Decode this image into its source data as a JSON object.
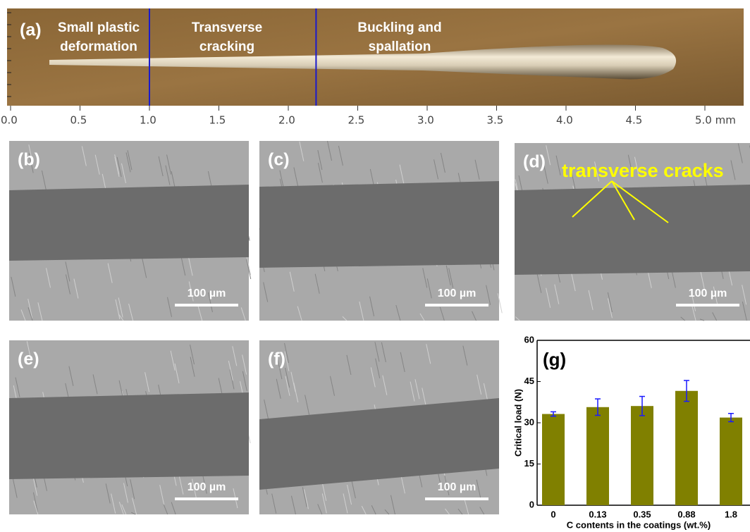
{
  "panel_a": {
    "label": "(a)",
    "zones": [
      [
        "Small plastic",
        "deformation"
      ],
      [
        "Transverse",
        "cracking"
      ],
      [
        "Buckling and",
        "spallation"
      ]
    ],
    "boundaries": [
      1.0,
      2.2
    ],
    "xlim": [
      0,
      5.3
    ],
    "xticks": [
      {
        "value": 0,
        "label": "0.0"
      },
      {
        "value": 0.5,
        "label": "0.5"
      },
      {
        "value": 1.0,
        "label": "1.0"
      },
      {
        "value": 1.5,
        "label": "1.5"
      },
      {
        "value": 2.0,
        "label": "2.0"
      },
      {
        "value": 2.5,
        "label": "2.5"
      },
      {
        "value": 3.0,
        "label": "3.0"
      },
      {
        "value": 3.5,
        "label": "3.5"
      },
      {
        "value": 4.0,
        "label": "4.0"
      },
      {
        "value": 4.5,
        "label": "4.5"
      },
      {
        "value": 5.0,
        "label": "5.0 mm"
      }
    ]
  },
  "panels": [
    {
      "label": "(b)",
      "scale_bar": "100 µm"
    },
    {
      "label": "(c)",
      "scale_bar": "100 µm"
    },
    {
      "label": "(d)",
      "scale_bar": "100 µm",
      "annotation": "transverse cracks"
    },
    {
      "label": "(e)",
      "scale_bar": "100 µm"
    },
    {
      "label": "(f)",
      "scale_bar": "100 µm"
    }
  ],
  "chart_data": {
    "type": "bar",
    "label": "(g)",
    "categories": [
      "0",
      "0.13",
      "0.35",
      "0.88",
      "1.8"
    ],
    "values": [
      33.2,
      35.7,
      36.1,
      41.6,
      31.9
    ],
    "errors": [
      0.8,
      3.0,
      3.5,
      3.8,
      1.5
    ],
    "color": "#808000",
    "error_color": "#1a1aff",
    "ylim": [
      0,
      60
    ],
    "yticks": [
      0,
      15,
      30,
      45,
      60
    ],
    "xlabel": "C contents in the coatings (wt.%)",
    "ylabel": "Critical load (N)"
  }
}
